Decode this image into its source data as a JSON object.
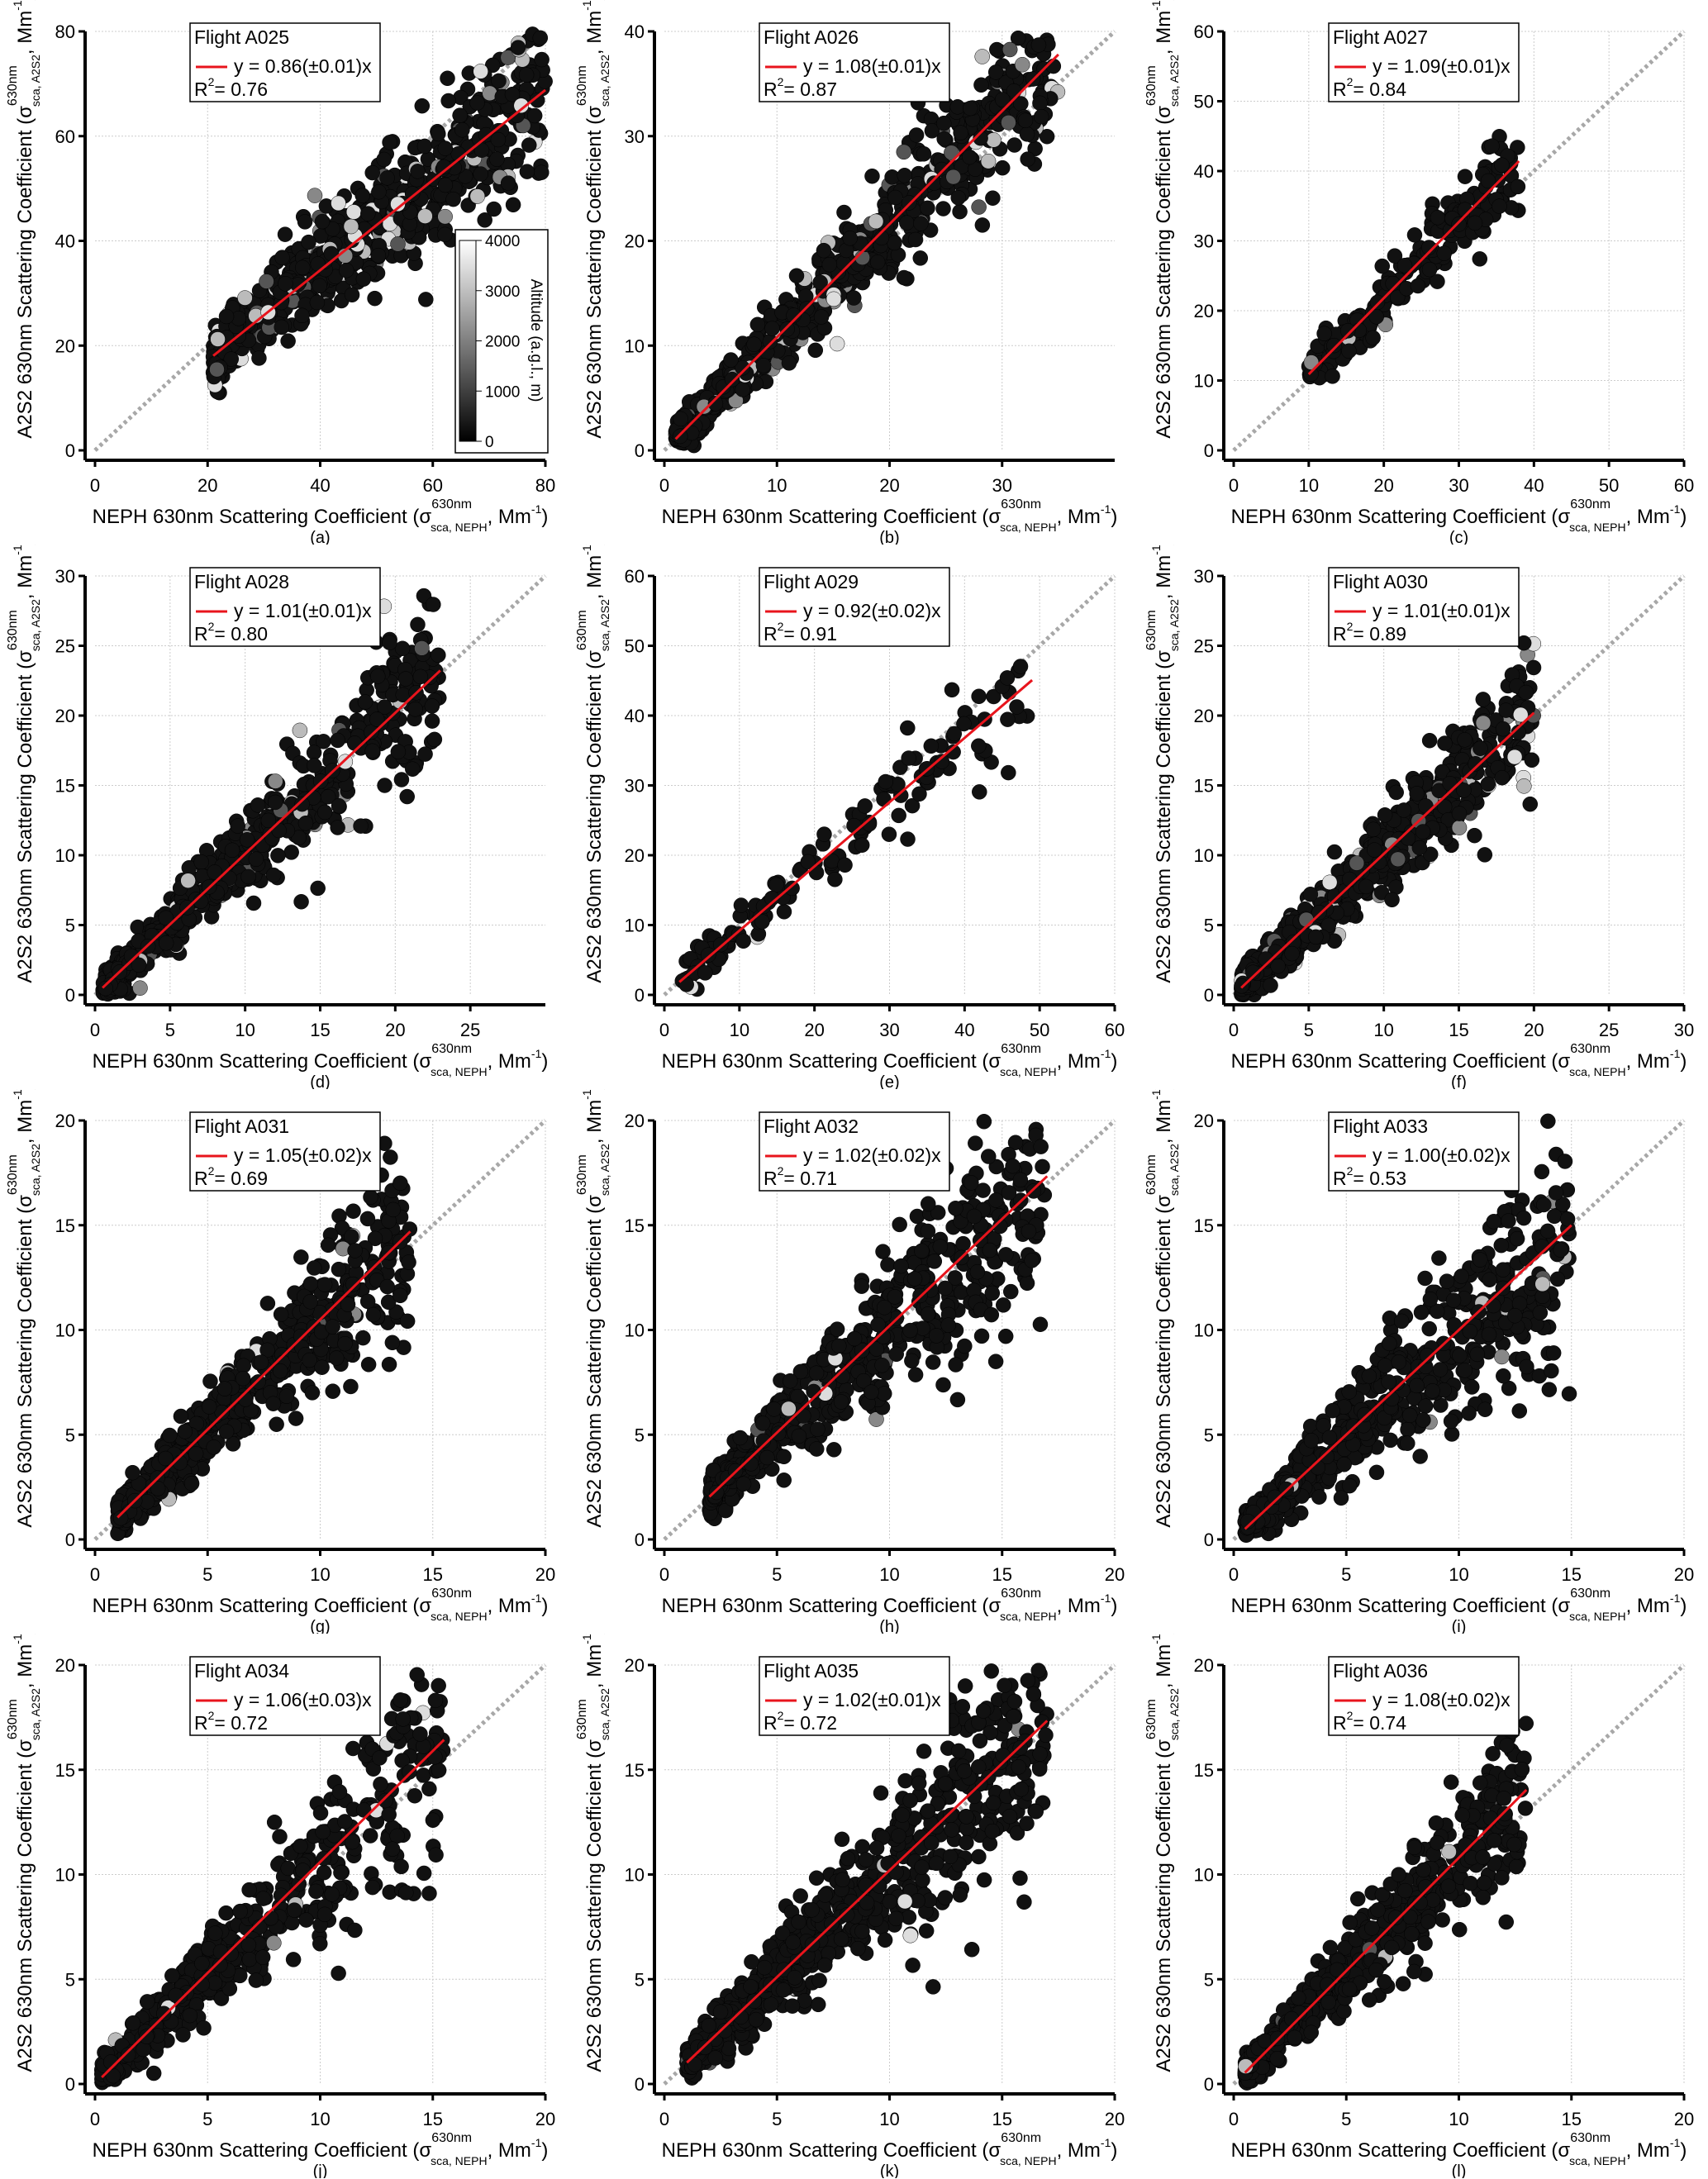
{
  "chart_data": {
    "type": "scatter",
    "shared": {
      "xlabel_main": "NEPH 630nm Scattering Coefficient (σ",
      "xlabel_sup": "630nm",
      "xlabel_sub": "sca, NEPH",
      "xlabel_unit": ", Mm",
      "ylabel_main": "A2S2 630nm Scattering Coefficient (σ",
      "ylabel_sup": "630nm",
      "ylabel_sub": "sca, A2S2",
      "ylabel_unit": ", Mm",
      "unit_exp": "-1",
      "close": ")",
      "fit_color": "#e8141c",
      "one_to_one_color": "#a8a8a8",
      "point_color": "#111111"
    },
    "panels": [
      {
        "id": "a",
        "caption": "(a)",
        "flight": "Flight A025",
        "fit": "y = 0.86(±0.01)x",
        "r2": "= 0.76",
        "slope": 0.86,
        "r2_value": 0.76,
        "xlim": [
          0,
          80
        ],
        "ylim": [
          0,
          80
        ],
        "ticks": [
          0,
          20,
          40,
          60,
          80
        ],
        "data_x_range": [
          21,
          80
        ],
        "n": 700,
        "spread": 0.13,
        "colorbar": {
          "label": "Altitude (a.g.l., m)",
          "ticks": [
            "0",
            "1000",
            "2000",
            "3000",
            "4000"
          ],
          "range": [
            0,
            4000
          ]
        },
        "gray_fraction": 0.15
      },
      {
        "id": "b",
        "caption": "(b)",
        "flight": "Flight A026",
        "fit": "y = 1.08(±0.01)x",
        "r2": "= 0.87",
        "slope": 1.08,
        "r2_value": 0.87,
        "xlim": [
          0,
          40
        ],
        "ylim": [
          0,
          40
        ],
        "ticks": [
          0,
          10,
          20,
          30
        ],
        "yticks": [
          0,
          10,
          20,
          30,
          40
        ],
        "data_x_range": [
          1,
          35
        ],
        "n": 700,
        "spread": 0.12,
        "gray_fraction": 0.12
      },
      {
        "id": "c",
        "caption": "(c)",
        "flight": "Flight A027",
        "fit": "y = 1.09(±0.01)x",
        "r2": "= 0.84",
        "slope": 1.09,
        "r2_value": 0.84,
        "xlim": [
          0,
          60
        ],
        "ylim": [
          0,
          60
        ],
        "ticks": [
          0,
          10,
          20,
          30,
          40,
          50,
          60
        ],
        "data_x_range": [
          10,
          38
        ],
        "n": 200,
        "spread": 0.08,
        "gray_fraction": 0.03
      },
      {
        "id": "d",
        "caption": "(d)",
        "flight": "Flight A028",
        "fit": "y = 1.01(±0.01)x",
        "r2": "= 0.80",
        "slope": 1.01,
        "r2_value": 0.8,
        "xlim": [
          0,
          30
        ],
        "ylim": [
          0,
          30
        ],
        "ticks": [
          0,
          5,
          10,
          15,
          20,
          25
        ],
        "yticks": [
          0,
          5,
          10,
          15,
          20,
          25,
          30
        ],
        "data_x_range": [
          0.5,
          23
        ],
        "n": 600,
        "spread": 0.13,
        "gray_fraction": 0.08
      },
      {
        "id": "e",
        "caption": "(e)",
        "flight": "Flight A029",
        "fit": "y = 0.92(±0.02)x",
        "r2": "= 0.91",
        "slope": 0.92,
        "r2_value": 0.91,
        "xlim": [
          0,
          60
        ],
        "ylim": [
          0,
          60
        ],
        "ticks": [
          0,
          10,
          20,
          30,
          40,
          50,
          60
        ],
        "data_x_range": [
          2,
          49
        ],
        "n": 140,
        "spread": 0.1,
        "gray_fraction": 0.02
      },
      {
        "id": "f",
        "caption": "(f)",
        "flight": "Flight A030",
        "fit": "y = 1.01(±0.01)x",
        "r2": "= 0.89",
        "slope": 1.01,
        "r2_value": 0.89,
        "xlim": [
          0,
          30
        ],
        "ylim": [
          0,
          30
        ],
        "ticks": [
          0,
          5,
          10,
          15,
          20,
          25,
          30
        ],
        "data_x_range": [
          0.5,
          20
        ],
        "n": 700,
        "spread": 0.13,
        "gray_fraction": 0.08
      },
      {
        "id": "g",
        "caption": "(g)",
        "flight": "Flight A031",
        "fit": "y = 1.05(±0.02)x",
        "r2": "= 0.69",
        "slope": 1.05,
        "r2_value": 0.69,
        "xlim": [
          0,
          20
        ],
        "ylim": [
          0,
          20
        ],
        "ticks": [
          0,
          5,
          10,
          15,
          20
        ],
        "data_x_range": [
          1,
          14
        ],
        "n": 600,
        "spread": 0.16,
        "gray_fraction": 0.02
      },
      {
        "id": "h",
        "caption": "(h)",
        "flight": "Flight A032",
        "fit": "y = 1.02(±0.02)x",
        "r2": "= 0.71",
        "slope": 1.02,
        "r2_value": 0.71,
        "xlim": [
          0,
          20
        ],
        "ylim": [
          0,
          20
        ],
        "ticks": [
          0,
          5,
          10,
          15,
          20
        ],
        "data_x_range": [
          2,
          17
        ],
        "n": 600,
        "spread": 0.17,
        "gray_fraction": 0.02
      },
      {
        "id": "i",
        "caption": "(i)",
        "flight": "Flight A033",
        "fit": "y = 1.00(±0.02)x",
        "r2": "= 0.53",
        "slope": 1.0,
        "r2_value": 0.53,
        "xlim": [
          0,
          20
        ],
        "ylim": [
          0,
          20
        ],
        "ticks": [
          0,
          5,
          10,
          15,
          20
        ],
        "data_x_range": [
          0.5,
          15
        ],
        "n": 600,
        "spread": 0.22,
        "gray_fraction": 0.02
      },
      {
        "id": "j",
        "caption": "(j)",
        "flight": "Flight A034",
        "fit": "y = 1.06(±0.03)x",
        "r2": "= 0.72",
        "slope": 1.06,
        "r2_value": 0.72,
        "xlim": [
          0,
          20
        ],
        "ylim": [
          0,
          20
        ],
        "ticks": [
          0,
          5,
          10,
          15,
          20
        ],
        "data_x_range": [
          0.3,
          15.5
        ],
        "n": 500,
        "spread": 0.18,
        "gray_fraction": 0.02
      },
      {
        "id": "k",
        "caption": "(k)",
        "flight": "Flight A035",
        "fit": "y = 1.02(±0.01)x",
        "r2": "= 0.72",
        "slope": 1.02,
        "r2_value": 0.72,
        "xlim": [
          0,
          20
        ],
        "ylim": [
          0,
          20
        ],
        "ticks": [
          0,
          5,
          10,
          15,
          20
        ],
        "data_x_range": [
          1,
          17
        ],
        "n": 700,
        "spread": 0.18,
        "gray_fraction": 0.02
      },
      {
        "id": "l",
        "caption": "(l)",
        "flight": "Flight A036",
        "fit": "y = 1.08(±0.02)x",
        "r2": "= 0.74",
        "slope": 1.08,
        "r2_value": 0.74,
        "xlim": [
          0,
          20
        ],
        "ylim": [
          0,
          20
        ],
        "ticks": [
          0,
          5,
          10,
          15,
          20
        ],
        "data_x_range": [
          0.5,
          13
        ],
        "n": 600,
        "spread": 0.15,
        "gray_fraction": 0.02
      }
    ]
  }
}
